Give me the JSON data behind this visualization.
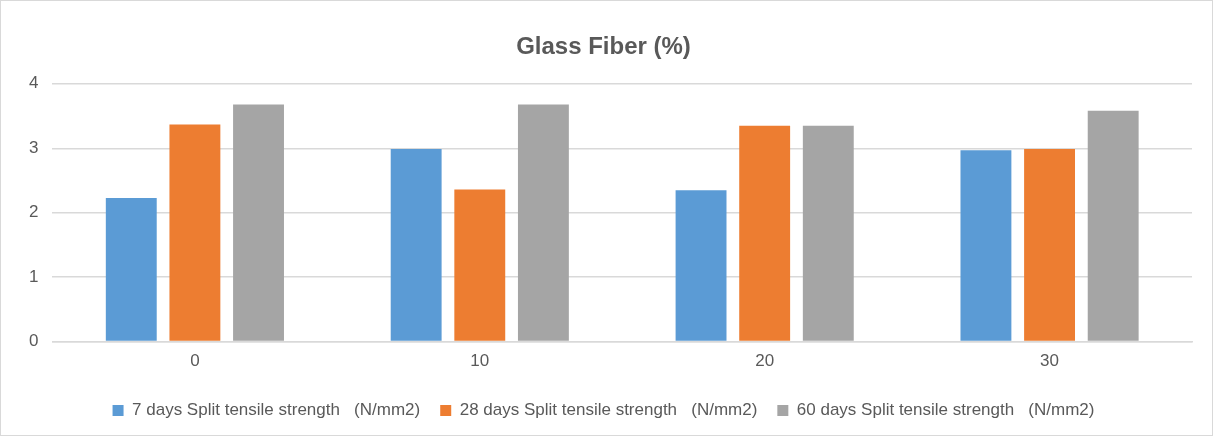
{
  "chart_data": {
    "type": "bar",
    "title": "Glass Fiber (%)",
    "categories": [
      "0",
      "10",
      "20",
      "30"
    ],
    "series": [
      {
        "name": "7 days Split tensile strength   (N/mm2)",
        "color": "#5b9bd5",
        "values": [
          2.23,
          2.99,
          2.35,
          2.97
        ]
      },
      {
        "name": "28 days Split tensile strength   (N/mm2)",
        "color": "#ed7d31",
        "values": [
          3.37,
          2.36,
          3.35,
          2.99
        ]
      },
      {
        "name": "60 days Split tensile strength   (N/mm2)",
        "color": "#a5a5a5",
        "values": [
          3.68,
          3.68,
          3.35,
          3.58
        ]
      }
    ],
    "ylim": [
      0,
      4
    ],
    "yticks": [
      0,
      1,
      2,
      3,
      4
    ],
    "grid": "y",
    "legend": "bottom"
  }
}
